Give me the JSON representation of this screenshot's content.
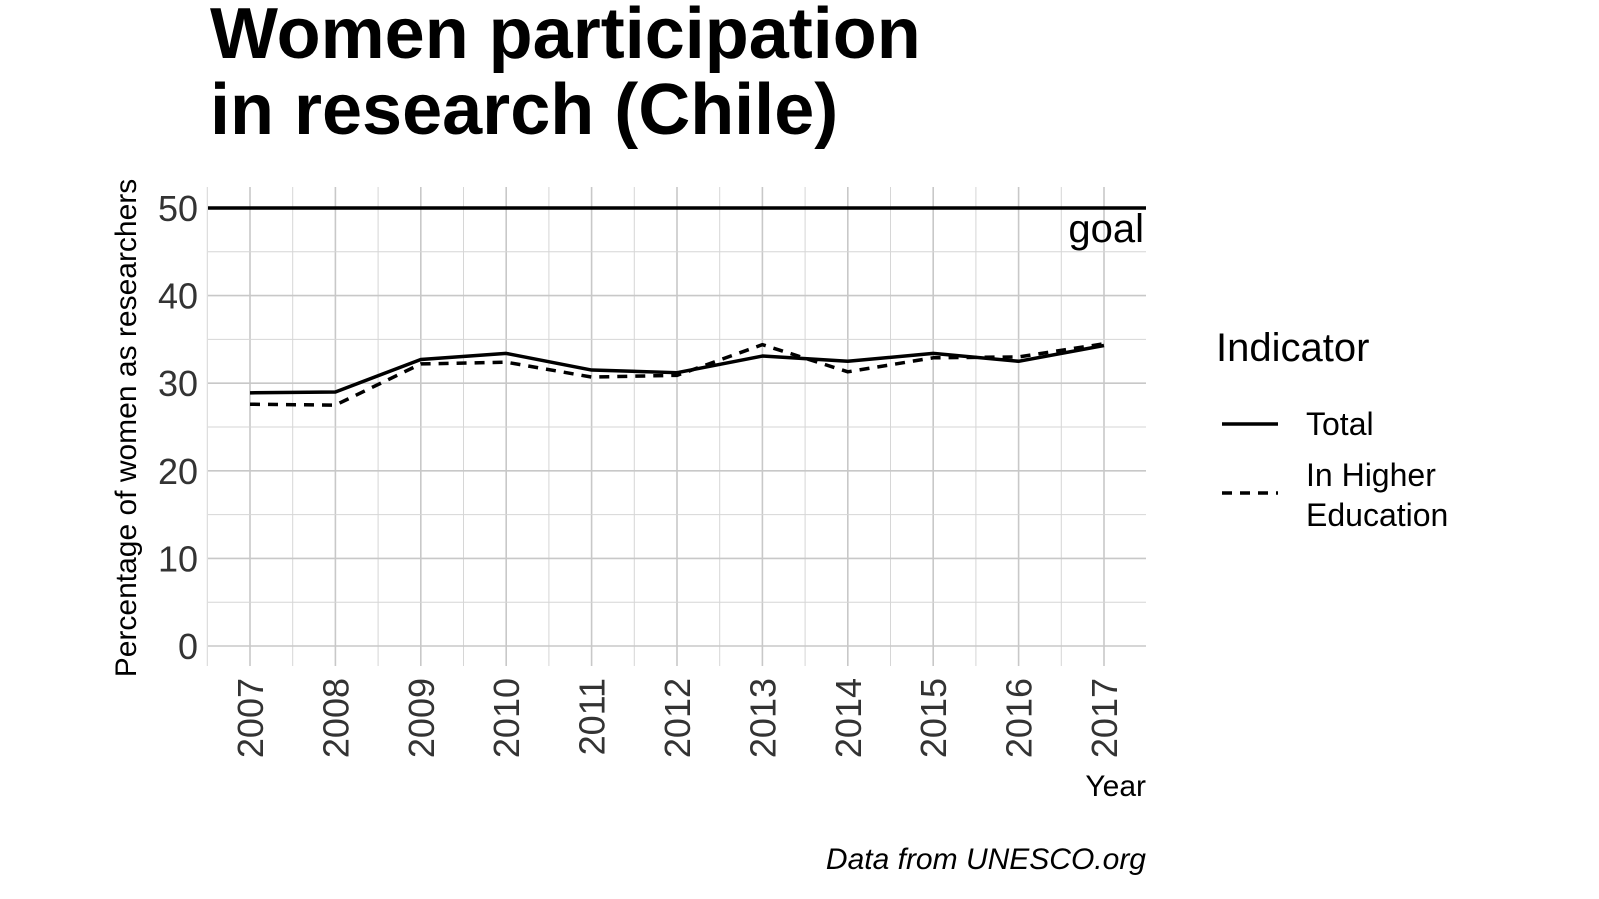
{
  "chart_data": {
    "type": "line",
    "title_lines": [
      "Women participation",
      "in research (Chile)"
    ],
    "xlabel": "Year",
    "ylabel": "Percentage of women as researchers",
    "x": [
      2007,
      2008,
      2009,
      2010,
      2011,
      2012,
      2013,
      2014,
      2015,
      2016,
      2017
    ],
    "ylim": [
      0,
      50
    ],
    "yticks": [
      0,
      10,
      20,
      30,
      40,
      50
    ],
    "grid": true,
    "series": [
      {
        "name": "Total",
        "line_style": "solid",
        "values": [
          28.9,
          29.0,
          32.7,
          33.4,
          31.5,
          31.2,
          33.1,
          32.5,
          33.4,
          32.5,
          34.3
        ]
      },
      {
        "name": "In Higher Education",
        "line_style": "dashed",
        "values": [
          27.6,
          27.5,
          32.2,
          32.4,
          30.7,
          30.9,
          34.4,
          31.3,
          32.9,
          33.0,
          34.5
        ]
      }
    ],
    "reference_line": {
      "y": 50,
      "label": "goal"
    },
    "legend": {
      "title": "Indicator",
      "position": "right",
      "labels": [
        "Total",
        "In Higher",
        "Education"
      ]
    },
    "caption": "Data from UNESCO.org"
  }
}
